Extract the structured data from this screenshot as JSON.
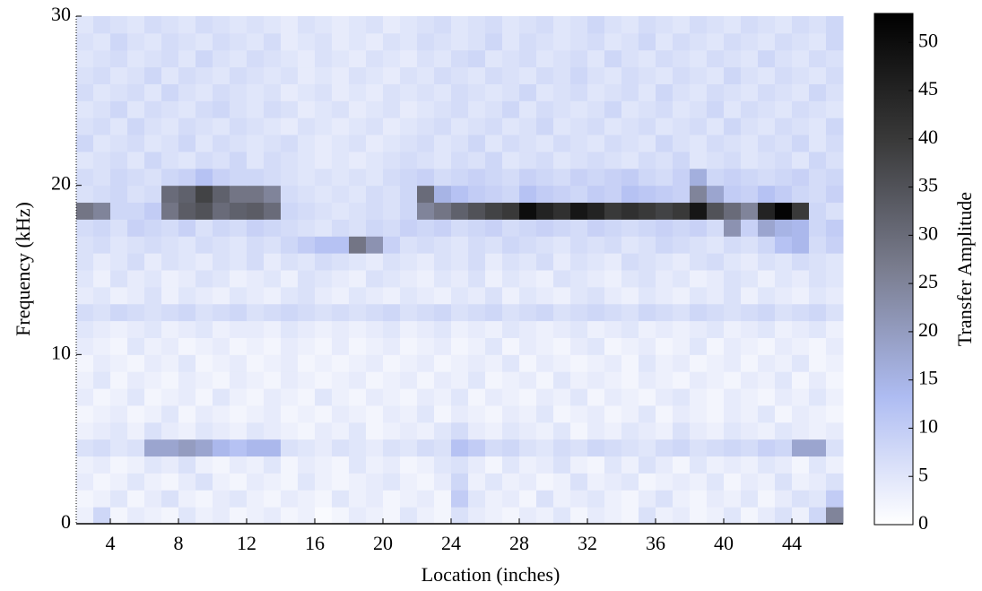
{
  "chart_data": {
    "type": "heatmap",
    "xlabel": "Location (inches)",
    "ylabel": "Frequency (kHz)",
    "colorbar_label": "Transfer Amplitude",
    "xlim": [
      2,
      47
    ],
    "ylim": [
      0,
      30
    ],
    "xticks": [
      4,
      8,
      12,
      16,
      20,
      24,
      28,
      32,
      36,
      40,
      44
    ],
    "yticks": [
      0,
      10,
      20,
      30
    ],
    "clim": [
      0,
      53
    ],
    "cticks": [
      0,
      5,
      10,
      15,
      20,
      25,
      30,
      35,
      40,
      45,
      50
    ],
    "colormap": [
      "#ffffff",
      "#aebcf2",
      "#7a7d8f",
      "#3a3a3a",
      "#000000"
    ],
    "x": [
      2.5,
      3.5,
      4.5,
      5.5,
      6.5,
      7.5,
      8.5,
      9.5,
      10.5,
      11.5,
      12.5,
      13.5,
      14.5,
      15.5,
      16.5,
      17.5,
      18.5,
      19.5,
      20.5,
      21.5,
      22.5,
      23.5,
      24.5,
      25.5,
      26.5,
      27.5,
      28.5,
      29.5,
      30.5,
      31.5,
      32.5,
      33.5,
      34.5,
      35.5,
      36.5,
      37.5,
      38.5,
      39.5,
      40.5,
      41.5,
      42.5,
      43.5,
      44.5,
      45.5,
      46.5
    ],
    "y": [
      0.5,
      1.5,
      2.5,
      3.5,
      4.5,
      5.5,
      6.5,
      7.5,
      8.5,
      9.5,
      10.5,
      11.5,
      12.5,
      13.5,
      14.5,
      15.5,
      16.5,
      17.5,
      18.5,
      19.5,
      20.5,
      21.5,
      22.5,
      23.5,
      24.5,
      25.5,
      26.5,
      27.5,
      28.5,
      29.5
    ],
    "z": [
      [
        3,
        8,
        2,
        4,
        3,
        2,
        5,
        3,
        4,
        2,
        3,
        4,
        2,
        3,
        1,
        2,
        4,
        3,
        2,
        5,
        3,
        2,
        6,
        4,
        3,
        2,
        4,
        3,
        5,
        2,
        4,
        3,
        2,
        6,
        3,
        4,
        2,
        3,
        5,
        2,
        4,
        6,
        3,
        8,
        25
      ],
      [
        2,
        3,
        5,
        2,
        4,
        6,
        3,
        2,
        4,
        5,
        3,
        2,
        4,
        3,
        2,
        5,
        3,
        4,
        2,
        3,
        4,
        2,
        10,
        5,
        3,
        4,
        2,
        6,
        3,
        4,
        5,
        3,
        2,
        4,
        6,
        3,
        2,
        4,
        3,
        5,
        2,
        4,
        6,
        5,
        10
      ],
      [
        4,
        2,
        3,
        5,
        3,
        2,
        4,
        6,
        3,
        2,
        4,
        3,
        2,
        5,
        3,
        2,
        3,
        4,
        5,
        3,
        2,
        4,
        8,
        3,
        5,
        3,
        4,
        2,
        3,
        6,
        3,
        4,
        5,
        2,
        3,
        4,
        3,
        5,
        2,
        4,
        3,
        6,
        3,
        4,
        6
      ],
      [
        3,
        4,
        2,
        3,
        5,
        4,
        6,
        3,
        2,
        4,
        3,
        5,
        2,
        4,
        3,
        2,
        5,
        3,
        4,
        2,
        3,
        5,
        6,
        4,
        2,
        5,
        3,
        4,
        6,
        3,
        2,
        5,
        3,
        6,
        4,
        2,
        5,
        3,
        4,
        3,
        5,
        4,
        2,
        5,
        3
      ],
      [
        6,
        7,
        5,
        6,
        18,
        18,
        20,
        18,
        14,
        12,
        14,
        14,
        6,
        5,
        4,
        6,
        5,
        4,
        6,
        5,
        7,
        6,
        12,
        10,
        7,
        8,
        6,
        5,
        7,
        6,
        8,
        7,
        6,
        5,
        7,
        8,
        6,
        7,
        8,
        7,
        9,
        8,
        18,
        18,
        6
      ],
      [
        3,
        4,
        5,
        3,
        6,
        4,
        3,
        5,
        4,
        3,
        5,
        4,
        3,
        2,
        4,
        3,
        5,
        2,
        3,
        4,
        3,
        5,
        7,
        4,
        3,
        5,
        4,
        3,
        5,
        2,
        4,
        3,
        5,
        4,
        3,
        6,
        4,
        3,
        5,
        4,
        3,
        5,
        4,
        3,
        4
      ],
      [
        2,
        3,
        4,
        2,
        3,
        5,
        2,
        4,
        3,
        2,
        3,
        4,
        2,
        3,
        2,
        4,
        3,
        2,
        4,
        3,
        5,
        2,
        4,
        3,
        2,
        4,
        3,
        5,
        2,
        3,
        4,
        2,
        3,
        5,
        2,
        4,
        3,
        2,
        4,
        3,
        5,
        2,
        4,
        3,
        2
      ],
      [
        4,
        2,
        3,
        5,
        2,
        3,
        4,
        2,
        5,
        3,
        2,
        4,
        3,
        2,
        5,
        3,
        2,
        4,
        3,
        2,
        4,
        3,
        5,
        2,
        4,
        3,
        2,
        4,
        3,
        5,
        2,
        4,
        3,
        2,
        4,
        5,
        3,
        2,
        4,
        3,
        2,
        4,
        3,
        5,
        3
      ],
      [
        3,
        5,
        2,
        4,
        3,
        2,
        4,
        3,
        2,
        4,
        3,
        2,
        4,
        3,
        2,
        3,
        4,
        2,
        3,
        4,
        2,
        4,
        3,
        5,
        2,
        3,
        4,
        2,
        5,
        3,
        4,
        3,
        2,
        4,
        3,
        2,
        4,
        3,
        2,
        4,
        3,
        5,
        2,
        4,
        2
      ],
      [
        2,
        4,
        3,
        2,
        4,
        3,
        5,
        2,
        3,
        4,
        2,
        3,
        4,
        2,
        3,
        2,
        3,
        4,
        2,
        3,
        4,
        2,
        3,
        4,
        3,
        5,
        2,
        4,
        3,
        2,
        3,
        4,
        2,
        5,
        3,
        4,
        2,
        3,
        4,
        2,
        4,
        3,
        5,
        2,
        3
      ],
      [
        4,
        3,
        2,
        5,
        3,
        4,
        2,
        3,
        4,
        2,
        3,
        2,
        4,
        3,
        2,
        4,
        2,
        3,
        4,
        2,
        3,
        4,
        2,
        3,
        5,
        2,
        4,
        3,
        2,
        4,
        5,
        2,
        3,
        4,
        2,
        3,
        5,
        2,
        4,
        3,
        2,
        4,
        3,
        2,
        4
      ],
      [
        5,
        4,
        3,
        4,
        5,
        3,
        4,
        5,
        3,
        4,
        4,
        3,
        5,
        4,
        3,
        4,
        3,
        4,
        5,
        3,
        4,
        5,
        3,
        4,
        3,
        5,
        4,
        3,
        4,
        5,
        3,
        4,
        5,
        3,
        4,
        3,
        4,
        5,
        3,
        4,
        5,
        3,
        4,
        5,
        3
      ],
      [
        7,
        6,
        8,
        7,
        6,
        7,
        8,
        6,
        7,
        8,
        6,
        7,
        8,
        7,
        6,
        7,
        6,
        7,
        8,
        6,
        7,
        8,
        6,
        7,
        8,
        6,
        7,
        8,
        6,
        7,
        8,
        7,
        6,
        8,
        7,
        6,
        8,
        7,
        6,
        7,
        8,
        6,
        7,
        8,
        6
      ],
      [
        4,
        5,
        3,
        4,
        6,
        3,
        5,
        4,
        3,
        5,
        4,
        3,
        5,
        6,
        4,
        3,
        5,
        4,
        3,
        5,
        4,
        3,
        5,
        4,
        6,
        3,
        5,
        4,
        3,
        5,
        6,
        4,
        3,
        5,
        4,
        3,
        5,
        4,
        6,
        3,
        5,
        4,
        3,
        5,
        4
      ],
      [
        5,
        3,
        6,
        4,
        5,
        3,
        4,
        6,
        5,
        3,
        4,
        5,
        3,
        6,
        5,
        4,
        3,
        6,
        5,
        4,
        3,
        5,
        4,
        6,
        3,
        5,
        4,
        3,
        6,
        5,
        4,
        3,
        5,
        6,
        4,
        5,
        3,
        4,
        6,
        5,
        3,
        5,
        4,
        6,
        5
      ],
      [
        6,
        4,
        5,
        7,
        4,
        6,
        5,
        4,
        6,
        5,
        7,
        4,
        6,
        5,
        7,
        6,
        5,
        4,
        6,
        5,
        4,
        6,
        5,
        7,
        4,
        6,
        5,
        7,
        4,
        6,
        5,
        4,
        7,
        6,
        5,
        4,
        6,
        7,
        5,
        4,
        6,
        5,
        7,
        6,
        5
      ],
      [
        6,
        7,
        5,
        6,
        7,
        6,
        5,
        7,
        6,
        5,
        7,
        6,
        8,
        10,
        12,
        12,
        28,
        22,
        9,
        6,
        7,
        6,
        5,
        7,
        6,
        8,
        7,
        6,
        5,
        7,
        6,
        7,
        5,
        6,
        8,
        7,
        6,
        5,
        7,
        6,
        8,
        12,
        14,
        7,
        9
      ],
      [
        7,
        8,
        6,
        9,
        8,
        7,
        9,
        6,
        8,
        7,
        9,
        8,
        7,
        6,
        5,
        7,
        6,
        8,
        7,
        9,
        8,
        9,
        7,
        8,
        9,
        7,
        8,
        9,
        8,
        7,
        9,
        8,
        7,
        8,
        9,
        8,
        9,
        7,
        22,
        9,
        18,
        15,
        14,
        8,
        10
      ],
      [
        28,
        25,
        8,
        8,
        10,
        28,
        33,
        35,
        30,
        32,
        33,
        30,
        8,
        7,
        6,
        5,
        6,
        7,
        6,
        8,
        25,
        28,
        32,
        35,
        38,
        40,
        50,
        45,
        42,
        48,
        45,
        40,
        42,
        40,
        38,
        40,
        48,
        35,
        30,
        25,
        45,
        52,
        40,
        8,
        6
      ],
      [
        6,
        7,
        8,
        6,
        7,
        30,
        32,
        38,
        32,
        28,
        28,
        25,
        7,
        6,
        5,
        6,
        5,
        7,
        6,
        8,
        30,
        15,
        12,
        10,
        9,
        8,
        12,
        10,
        9,
        8,
        10,
        9,
        12,
        11,
        10,
        9,
        25,
        18,
        10,
        9,
        12,
        10,
        8,
        7,
        9
      ],
      [
        7,
        6,
        8,
        7,
        6,
        8,
        9,
        12,
        9,
        8,
        8,
        7,
        6,
        5,
        6,
        5,
        6,
        5,
        7,
        8,
        9,
        7,
        8,
        9,
        8,
        7,
        9,
        8,
        7,
        9,
        8,
        9,
        10,
        8,
        7,
        9,
        16,
        8,
        9,
        8,
        7,
        8,
        9,
        7,
        8
      ],
      [
        5,
        6,
        7,
        5,
        8,
        6,
        5,
        7,
        6,
        8,
        5,
        7,
        6,
        5,
        4,
        5,
        4,
        5,
        6,
        7,
        6,
        5,
        7,
        6,
        8,
        5,
        6,
        7,
        5,
        6,
        7,
        6,
        5,
        7,
        6,
        8,
        5,
        6,
        7,
        5,
        6,
        7,
        5,
        8,
        6
      ],
      [
        8,
        5,
        6,
        7,
        5,
        6,
        8,
        5,
        7,
        6,
        5,
        6,
        7,
        5,
        4,
        5,
        6,
        4,
        5,
        6,
        7,
        5,
        6,
        8,
        5,
        7,
        6,
        5,
        7,
        6,
        5,
        7,
        6,
        5,
        8,
        6,
        5,
        7,
        6,
        5,
        7,
        6,
        8,
        5,
        7
      ],
      [
        6,
        7,
        5,
        8,
        6,
        5,
        7,
        6,
        5,
        7,
        6,
        5,
        4,
        6,
        5,
        4,
        5,
        6,
        4,
        5,
        6,
        7,
        5,
        6,
        7,
        5,
        6,
        8,
        5,
        6,
        7,
        5,
        6,
        7,
        5,
        6,
        7,
        5,
        8,
        6,
        5,
        7,
        6,
        5,
        8
      ],
      [
        5,
        6,
        8,
        5,
        7,
        6,
        5,
        7,
        8,
        6,
        5,
        7,
        6,
        4,
        5,
        6,
        4,
        5,
        6,
        4,
        5,
        6,
        7,
        5,
        6,
        8,
        5,
        7,
        6,
        5,
        6,
        8,
        5,
        6,
        7,
        5,
        6,
        8,
        5,
        7,
        6,
        5,
        7,
        6,
        5
      ],
      [
        7,
        5,
        6,
        7,
        5,
        8,
        6,
        5,
        7,
        6,
        5,
        6,
        4,
        5,
        6,
        4,
        5,
        4,
        6,
        5,
        6,
        5,
        7,
        6,
        5,
        6,
        8,
        5,
        6,
        7,
        5,
        6,
        7,
        5,
        8,
        6,
        5,
        7,
        6,
        5,
        7,
        6,
        5,
        8,
        6
      ],
      [
        6,
        7,
        5,
        6,
        8,
        5,
        7,
        6,
        5,
        7,
        6,
        5,
        6,
        4,
        5,
        4,
        6,
        5,
        4,
        6,
        5,
        7,
        6,
        5,
        7,
        6,
        5,
        7,
        6,
        8,
        6,
        5,
        7,
        6,
        5,
        7,
        6,
        5,
        8,
        6,
        5,
        7,
        6,
        5,
        7
      ],
      [
        5,
        6,
        7,
        5,
        6,
        7,
        5,
        8,
        6,
        5,
        7,
        6,
        5,
        4,
        6,
        5,
        4,
        6,
        5,
        4,
        6,
        5,
        7,
        8,
        5,
        6,
        7,
        5,
        6,
        7,
        5,
        8,
        6,
        5,
        7,
        6,
        5,
        7,
        6,
        5,
        8,
        6,
        5,
        7,
        6
      ],
      [
        6,
        5,
        8,
        6,
        5,
        7,
        6,
        5,
        7,
        6,
        5,
        7,
        4,
        5,
        6,
        4,
        5,
        4,
        6,
        5,
        7,
        6,
        5,
        6,
        8,
        5,
        7,
        6,
        5,
        6,
        7,
        5,
        6,
        8,
        5,
        7,
        6,
        5,
        7,
        6,
        5,
        7,
        6,
        5,
        8
      ],
      [
        5,
        7,
        6,
        5,
        7,
        6,
        5,
        7,
        6,
        5,
        6,
        5,
        4,
        6,
        5,
        4,
        5,
        6,
        4,
        5,
        6,
        7,
        5,
        6,
        7,
        5,
        6,
        7,
        5,
        6,
        8,
        6,
        5,
        7,
        6,
        5,
        7,
        6,
        5,
        7,
        6,
        5,
        7,
        6,
        8
      ]
    ]
  }
}
